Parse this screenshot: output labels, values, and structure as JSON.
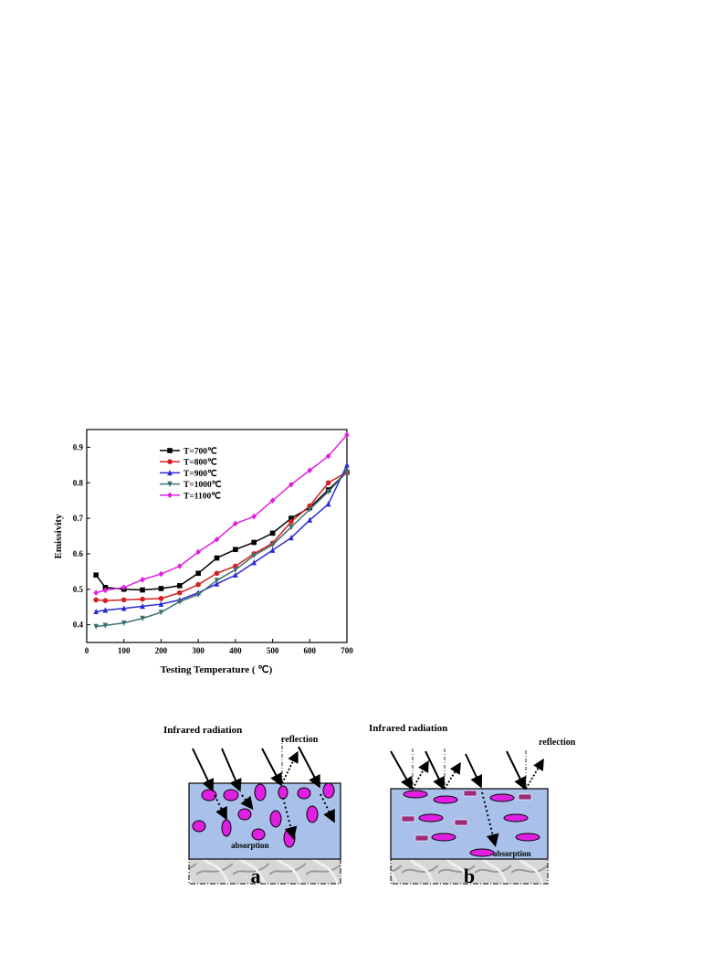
{
  "chart_data": {
    "type": "line",
    "xlabel": "Testing Temperature ( ℃)",
    "ylabel": "Emissivity",
    "xlim": [
      0,
      700
    ],
    "ylim": [
      0.35,
      0.95
    ],
    "xticks": [
      0,
      100,
      200,
      300,
      400,
      500,
      600,
      700
    ],
    "yticks": [
      0.4,
      0.5,
      0.6,
      0.7,
      0.8,
      0.9
    ],
    "grid": false,
    "legend_position": "top-left",
    "x": [
      25,
      50,
      100,
      150,
      200,
      250,
      300,
      350,
      400,
      450,
      500,
      550,
      600,
      650,
      700
    ],
    "series": [
      {
        "name": "T=700℃",
        "color": "#000000",
        "marker": "square",
        "values": [
          0.54,
          0.505,
          0.5,
          0.498,
          0.502,
          0.51,
          0.545,
          0.588,
          0.612,
          0.632,
          0.658,
          0.7,
          0.73,
          0.78,
          0.83
        ]
      },
      {
        "name": "T=800℃",
        "color": "#d42020",
        "marker": "circle",
        "values": [
          0.47,
          0.468,
          0.47,
          0.472,
          0.474,
          0.49,
          0.513,
          0.545,
          0.565,
          0.6,
          0.63,
          0.69,
          0.735,
          0.8,
          0.83
        ]
      },
      {
        "name": "T=900℃",
        "color": "#2a2ad4",
        "marker": "triangle-up",
        "values": [
          0.437,
          0.441,
          0.446,
          0.452,
          0.458,
          0.47,
          0.49,
          0.515,
          0.54,
          0.575,
          0.61,
          0.645,
          0.695,
          0.74,
          0.85
        ]
      },
      {
        "name": "T=1000℃",
        "color": "#3f7070",
        "marker": "triangle-down",
        "values": [
          0.395,
          0.398,
          0.405,
          0.418,
          0.435,
          0.465,
          0.485,
          0.525,
          0.555,
          0.595,
          0.625,
          0.675,
          0.725,
          0.775,
          0.83
        ]
      },
      {
        "name": "T=1100℃",
        "color": "#e020e0",
        "marker": "diamond",
        "values": [
          0.49,
          0.497,
          0.505,
          0.527,
          0.543,
          0.565,
          0.605,
          0.64,
          0.685,
          0.705,
          0.75,
          0.795,
          0.835,
          0.875,
          0.935
        ]
      }
    ]
  },
  "diagrams": {
    "a": {
      "title": "Infrared radiation",
      "reflection_label": "reflection",
      "absorption_label": "absorption",
      "panel_label": "a"
    },
    "b": {
      "title": "Infrared radiation",
      "reflection_label": "reflection",
      "absorption_label": "absorption",
      "panel_label": "b"
    },
    "colors": {
      "coating": "#a9c1ea",
      "particle": "#e020e0",
      "flake": "#9c2c7a",
      "substrate": "#d0d0d0"
    }
  }
}
